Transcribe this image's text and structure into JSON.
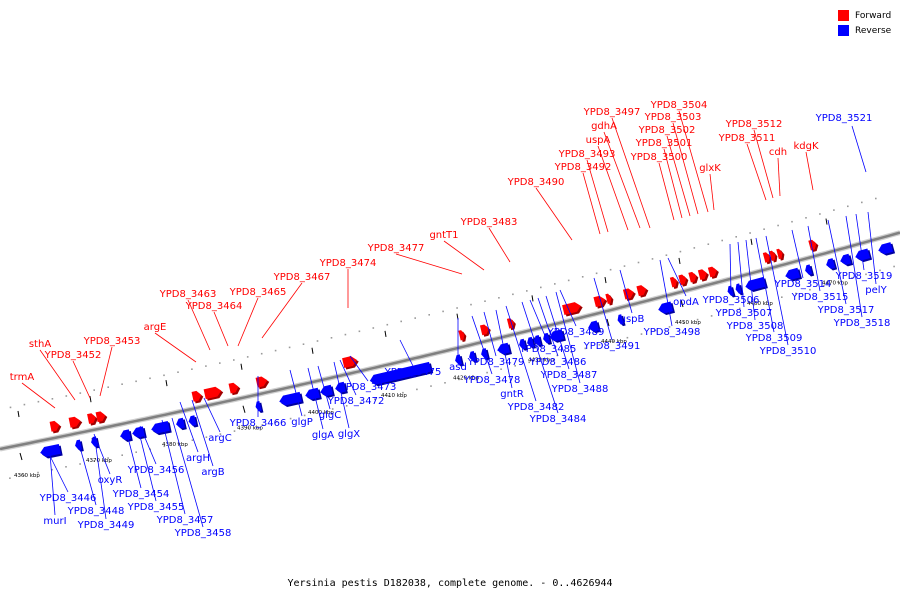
{
  "caption": "Yersinia pestis D182038, complete genome. - 0..4626944",
  "legend": [
    {
      "label": "Forward",
      "color": "#ff0000"
    },
    {
      "label": "Reverse",
      "color": "#0000ff"
    }
  ],
  "colors": {
    "forward": "#ff0000",
    "reverse": "#0000ff",
    "backbone": "#808080"
  },
  "scale_labels": [
    "4360 kbp",
    "4370 kbp",
    "4380 kbp",
    "4390 kbp",
    "4400 kbp",
    "4410 kbp",
    "4420 kbp",
    "4430 kbp",
    "4440 kbp",
    "4450 kbp",
    "4460 kbp",
    "4470 kbp"
  ],
  "forward_genes": [
    "trmA",
    "sthA",
    "YPD8_3452",
    "YPD8_3453",
    "argE",
    "YPD8_3463",
    "YPD8_3464",
    "YPD8_3465",
    "YPD8_3467",
    "YPD8_3474",
    "YPD8_3477",
    "gntT1",
    "YPD8_3483",
    "YPD8_3490",
    "YPD8_3492",
    "YPD8_3493",
    "uspA",
    "gdhA",
    "YPD8_3497",
    "YPD8_3500",
    "YPD8_3501",
    "YPD8_3502",
    "YPD8_3503",
    "YPD8_3504",
    "glxK",
    "YPD8_3511",
    "YPD8_3512",
    "cdh",
    "kdgK"
  ],
  "reverse_genes": [
    "YPD8_3446",
    "murI",
    "YPD8_3448",
    "YPD8_3449",
    "oxyR",
    "YPD8_3454",
    "YPD8_3455",
    "YPD8_3456",
    "YPD8_3457",
    "YPD8_3458",
    "argH",
    "argB",
    "argC",
    "YPD8_3466",
    "glgP",
    "glgA",
    "glgC",
    "glgX",
    "YPD8_3472",
    "YPD8_3473",
    "YPD8_3475",
    "asd",
    "YPD8_3478",
    "YPD8_3479",
    "gntR",
    "YPD8_3482",
    "YPD8_3484",
    "YPD8_3485",
    "YPD8_3486",
    "YPD8_3487",
    "YPD8_3488",
    "YPD8_3489",
    "YPD8_3491",
    "uspB",
    "YPD8_3498",
    "opdA",
    "YPD8_3506",
    "YPD8_3507",
    "YPD8_3508",
    "YPD8_3509",
    "YPD8_3510",
    "YPD8_3514",
    "YPD8_3515",
    "YPD8_3517",
    "YPD8_3518",
    "YPD8_3519",
    "pelY",
    "YPD8_3521"
  ]
}
